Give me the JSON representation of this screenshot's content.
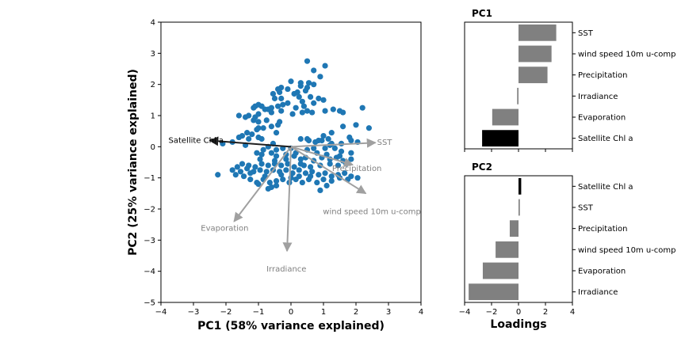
{
  "chart_data": [
    {
      "type": "scatter",
      "xlabel": "PC1 (58% variance explained)",
      "ylabel": "PC2 (25% variance explained)",
      "xlim": [
        -4,
        4
      ],
      "ylim": [
        -5,
        4
      ],
      "xticks": [
        "−4",
        "−3",
        "−2",
        "−1",
        "0",
        "1",
        "2",
        "3",
        "4"
      ],
      "yticks": [
        "−5",
        "−4",
        "−3",
        "−2",
        "−1",
        "0",
        "1",
        "2",
        "3",
        "4"
      ],
      "point_color": "#1f77b4",
      "vectors": [
        {
          "label": "SST",
          "x": 2.6,
          "y": 0.13,
          "color": "#a0a0a0",
          "label_color": "#808080"
        },
        {
          "label": "Precipitation",
          "x": 1.9,
          "y": -0.58,
          "color": "#a0a0a0",
          "label_color": "#808080"
        },
        {
          "label": "wind speed 10m u-comp",
          "x": 2.3,
          "y": -1.5,
          "color": "#a0a0a0",
          "label_color": "#808080"
        },
        {
          "label": "Irradiance",
          "x": -0.12,
          "y": -3.35,
          "color": "#a0a0a0",
          "label_color": "#808080"
        },
        {
          "label": "Evaporation",
          "x": -1.75,
          "y": -2.4,
          "color": "#a0a0a0",
          "label_color": "#808080"
        },
        {
          "label": "Satellite Chl a",
          "x": -2.5,
          "y": 0.2,
          "color": "#202020",
          "label_color": "#000000"
        }
      ],
      "points": [
        [
          0.5,
          2.75
        ],
        [
          1.05,
          2.6
        ],
        [
          0.7,
          2.45
        ],
        [
          0.9,
          2.25
        ],
        [
          2.2,
          1.25
        ],
        [
          2.4,
          0.6
        ],
        [
          2.0,
          0.7
        ],
        [
          1.6,
          0.65
        ],
        [
          1.8,
          0.3
        ],
        [
          0.0,
          2.1
        ],
        [
          0.3,
          2.05
        ],
        [
          0.55,
          2.05
        ],
        [
          0.7,
          2.0
        ],
        [
          0.3,
          1.95
        ],
        [
          0.5,
          1.9
        ],
        [
          0.45,
          1.8
        ],
        [
          0.2,
          1.75
        ],
        [
          0.1,
          1.7
        ],
        [
          -0.3,
          1.9
        ],
        [
          -0.4,
          1.85
        ],
        [
          -0.1,
          1.85
        ],
        [
          -0.35,
          1.75
        ],
        [
          -0.55,
          1.7
        ],
        [
          -0.5,
          1.55
        ],
        [
          -0.3,
          1.55
        ],
        [
          0.25,
          1.6
        ],
        [
          0.6,
          1.6
        ],
        [
          0.85,
          1.55
        ],
        [
          1.0,
          1.5
        ],
        [
          0.35,
          1.45
        ],
        [
          0.7,
          1.4
        ],
        [
          -0.1,
          1.4
        ],
        [
          -0.4,
          1.3
        ],
        [
          -0.6,
          1.25
        ],
        [
          -0.7,
          1.2
        ],
        [
          -0.9,
          1.3
        ],
        [
          -1.0,
          1.35
        ],
        [
          -1.1,
          1.3
        ],
        [
          -0.8,
          1.2
        ],
        [
          -0.6,
          1.1
        ],
        [
          -0.3,
          1.15
        ],
        [
          0.05,
          1.05
        ],
        [
          0.35,
          1.1
        ],
        [
          0.5,
          1.15
        ],
        [
          0.65,
          1.1
        ],
        [
          1.05,
          1.15
        ],
        [
          1.3,
          1.2
        ],
        [
          1.5,
          1.15
        ],
        [
          1.6,
          1.1
        ],
        [
          -1.0,
          1.05
        ],
        [
          -1.3,
          1.0
        ],
        [
          -1.4,
          0.95
        ],
        [
          -1.15,
          0.85
        ],
        [
          -1.0,
          0.8
        ],
        [
          -0.75,
          0.85
        ],
        [
          -0.35,
          0.8
        ],
        [
          -0.4,
          0.7
        ],
        [
          -0.6,
          0.65
        ],
        [
          -0.85,
          0.6
        ],
        [
          -1.0,
          0.6
        ],
        [
          -1.05,
          0.55
        ],
        [
          -1.35,
          0.45
        ],
        [
          -1.2,
          0.4
        ],
        [
          -1.5,
          0.35
        ],
        [
          -1.6,
          0.3
        ],
        [
          -1.3,
          0.25
        ],
        [
          -1.0,
          0.3
        ],
        [
          -0.9,
          0.25
        ],
        [
          -1.4,
          0.05
        ],
        [
          -2.1,
          0.1
        ],
        [
          -1.8,
          0.15
        ],
        [
          0.5,
          0.25
        ],
        [
          0.55,
          0.2
        ],
        [
          0.75,
          0.15
        ],
        [
          0.85,
          0.2
        ],
        [
          1.0,
          0.35
        ],
        [
          1.15,
          0.25
        ],
        [
          1.2,
          0.05
        ],
        [
          1.55,
          0.1
        ],
        [
          1.85,
          0.2
        ],
        [
          2.05,
          0.15
        ],
        [
          1.05,
          -0.05
        ],
        [
          1.35,
          -0.05
        ],
        [
          1.55,
          -0.15
        ],
        [
          1.1,
          -0.25
        ],
        [
          0.8,
          -0.2
        ],
        [
          0.5,
          -0.1
        ],
        [
          0.0,
          -0.05
        ],
        [
          -0.25,
          -0.05
        ],
        [
          -0.45,
          -0.1
        ],
        [
          -0.55,
          0.1
        ],
        [
          -0.7,
          0.0
        ],
        [
          -0.85,
          -0.1
        ],
        [
          -1.05,
          -0.2
        ],
        [
          -0.9,
          -0.25
        ],
        [
          -0.6,
          -0.2
        ],
        [
          -0.45,
          -0.3
        ],
        [
          -0.15,
          -0.4
        ],
        [
          0.1,
          -0.3
        ],
        [
          0.3,
          -0.4
        ],
        [
          0.45,
          -0.35
        ],
        [
          0.7,
          -0.45
        ],
        [
          0.95,
          -0.35
        ],
        [
          1.2,
          -0.4
        ],
        [
          1.4,
          -0.35
        ],
        [
          1.6,
          -0.45
        ],
        [
          1.85,
          -0.4
        ],
        [
          1.7,
          -0.55
        ],
        [
          1.45,
          -0.6
        ],
        [
          1.2,
          -0.55
        ],
        [
          0.9,
          -0.6
        ],
        [
          0.6,
          -0.65
        ],
        [
          0.3,
          -0.55
        ],
        [
          0.1,
          -0.65
        ],
        [
          -0.1,
          -0.55
        ],
        [
          -0.3,
          -0.6
        ],
        [
          -0.5,
          -0.55
        ],
        [
          -0.7,
          -0.6
        ],
        [
          -0.9,
          -0.55
        ],
        [
          -1.1,
          -0.65
        ],
        [
          -1.3,
          -0.6
        ],
        [
          -1.5,
          -0.55
        ],
        [
          -1.65,
          -0.65
        ],
        [
          -1.8,
          -0.75
        ],
        [
          -1.55,
          -0.8
        ],
        [
          -1.35,
          -0.7
        ],
        [
          -1.15,
          -0.8
        ],
        [
          -0.95,
          -0.75
        ],
        [
          -0.75,
          -0.8
        ],
        [
          -0.55,
          -0.75
        ],
        [
          -0.35,
          -0.8
        ],
        [
          -0.15,
          -0.75
        ],
        [
          0.05,
          -0.85
        ],
        [
          0.25,
          -0.75
        ],
        [
          0.45,
          -0.85
        ],
        [
          0.65,
          -0.8
        ],
        [
          0.85,
          -0.9
        ],
        [
          1.05,
          -0.85
        ],
        [
          1.25,
          -0.95
        ],
        [
          1.45,
          -0.9
        ],
        [
          1.65,
          -0.85
        ],
        [
          1.85,
          -0.95
        ],
        [
          2.05,
          -1.0
        ],
        [
          1.75,
          -1.05
        ],
        [
          1.5,
          -1.0
        ],
        [
          1.25,
          -1.1
        ],
        [
          1.0,
          -1.05
        ],
        [
          0.8,
          -1.15
        ],
        [
          0.55,
          -1.05
        ],
        [
          0.35,
          -1.15
        ],
        [
          0.15,
          -1.05
        ],
        [
          -0.05,
          -1.15
        ],
        [
          -0.25,
          -1.05
        ],
        [
          -0.45,
          -1.1
        ],
        [
          -0.65,
          -1.15
        ],
        [
          -0.85,
          -1.05
        ],
        [
          -1.05,
          -1.15
        ],
        [
          -1.25,
          -1.05
        ],
        [
          -1.45,
          -0.95
        ],
        [
          -1.7,
          -0.9
        ],
        [
          -2.25,
          -0.9
        ],
        [
          -0.6,
          -1.3
        ],
        [
          -0.45,
          -1.25
        ],
        [
          -0.7,
          -1.35
        ],
        [
          -1.0,
          -1.2
        ],
        [
          0.9,
          -1.4
        ],
        [
          1.1,
          -1.25
        ],
        [
          0.25,
          -0.95
        ],
        [
          -0.3,
          -0.9
        ],
        [
          0.6,
          -0.95
        ],
        [
          -0.8,
          -0.95
        ],
        [
          -1.25,
          -0.85
        ],
        [
          0.0,
          -1.0
        ],
        [
          0.4,
          -0.6
        ],
        [
          -0.15,
          -0.25
        ],
        [
          0.7,
          -0.05
        ],
        [
          1.85,
          -0.2
        ],
        [
          1.5,
          -0.3
        ],
        [
          -0.45,
          0.45
        ],
        [
          1.25,
          0.45
        ],
        [
          0.95,
          0.2
        ],
        [
          0.3,
          0.25
        ],
        [
          -1.6,
          1.0
        ],
        [
          -1.1,
          0.95
        ],
        [
          -1.15,
          1.25
        ],
        [
          -0.25,
          1.35
        ],
        [
          0.15,
          1.25
        ],
        [
          0.4,
          1.3
        ],
        [
          1.25,
          0.1
        ],
        [
          -0.95,
          -0.4
        ],
        [
          0.15,
          -0.2
        ],
        [
          -0.5,
          -0.45
        ]
      ]
    },
    {
      "type": "bar",
      "orientation": "horizontal",
      "title": "PC1",
      "categories": [
        "SST",
        "wind speed 10m u-comp",
        "Precipitation",
        "Irradiance",
        "Evaporation",
        "Satellite Chl a"
      ],
      "values": [
        2.8,
        2.45,
        2.15,
        -0.1,
        -1.95,
        -2.7
      ],
      "colors": [
        "#808080",
        "#808080",
        "#808080",
        "#808080",
        "#808080",
        "#000000"
      ],
      "xlim": [
        -4,
        4
      ],
      "xticks": []
    },
    {
      "type": "bar",
      "orientation": "horizontal",
      "title": "PC2",
      "categories": [
        "Satellite Chl a",
        "SST",
        "Precipitation",
        "wind speed 10m u-comp",
        "Evaporation",
        "Irradiance"
      ],
      "values": [
        0.2,
        0.1,
        -0.65,
        -1.7,
        -2.65,
        -3.7
      ],
      "colors": [
        "#000000",
        "#808080",
        "#808080",
        "#808080",
        "#808080",
        "#808080"
      ],
      "xlim": [
        -4,
        4
      ],
      "xticks": [
        "−4",
        "−2",
        "0",
        "2",
        "4"
      ],
      "xlabel": "Loadings"
    }
  ]
}
